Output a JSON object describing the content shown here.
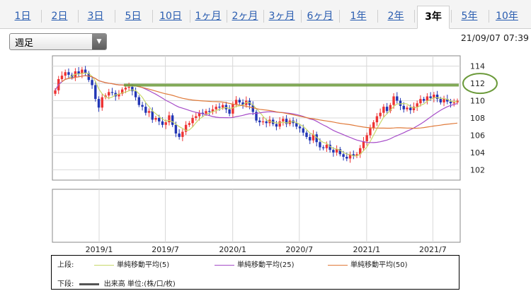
{
  "tabs": [
    {
      "label": "1日"
    },
    {
      "label": "2日"
    },
    {
      "label": "3日"
    },
    {
      "label": "5日"
    },
    {
      "label": "10日"
    },
    {
      "label": "1ヶ月"
    },
    {
      "label": "2ヶ月"
    },
    {
      "label": "3ヶ月"
    },
    {
      "label": "6ヶ月"
    },
    {
      "label": "1年"
    },
    {
      "label": "2年"
    },
    {
      "label": "3年"
    },
    {
      "label": "5年"
    },
    {
      "label": "10年"
    }
  ],
  "active_tab": "3年",
  "period_select": {
    "value": "週足"
  },
  "timestamp": "21/09/07 07:39",
  "legend": {
    "upper_label": "上段:",
    "lower_label": "下段:",
    "items": [
      {
        "label": "単純移動平均(5)",
        "color": "#c8d86a"
      },
      {
        "label": "単純移動平均(25)",
        "color": "#a64cc8"
      },
      {
        "label": "単純移動平均(50)",
        "color": "#e07a3a"
      }
    ],
    "volume_label": "出来高 単位:(株/口/枚)",
    "volume_color": "#555555"
  },
  "annotation_color": "#6b9a3a",
  "chart_data": {
    "type": "candlestick",
    "x_ticks": [
      "2019/1",
      "2019/7",
      "2020/1",
      "2020/7",
      "2021/1",
      "2021/7"
    ],
    "y_ticks": [
      102,
      104,
      106,
      108,
      110,
      112,
      114
    ],
    "ylim": [
      100.8,
      115.2
    ],
    "date_range": [
      "2018-09-03",
      "2021-09-06"
    ],
    "resistance_level": 111.8,
    "highlighted_tick": 112,
    "closes": [
      111.2,
      112.5,
      112.9,
      113.3,
      113.0,
      112.7,
      113.4,
      113.1,
      113.6,
      113.2,
      112.4,
      111.8,
      110.2,
      109.2,
      110.4,
      110.6,
      111.0,
      110.9,
      110.5,
      110.8,
      111.3,
      111.5,
      111.6,
      111.1,
      110.4,
      109.5,
      109.3,
      108.6,
      108.8,
      107.8,
      108.0,
      107.6,
      107.2,
      107.5,
      108.3,
      107.2,
      106.2,
      105.8,
      106.4,
      107.2,
      107.4,
      108.0,
      108.2,
      108.6,
      108.5,
      108.8,
      108.7,
      109.0,
      109.3,
      109.2,
      109.5,
      109.0,
      108.5,
      109.6,
      110.1,
      109.8,
      109.5,
      110.0,
      109.5,
      108.7,
      107.7,
      107.5,
      107.6,
      107.4,
      107.8,
      107.3,
      107.0,
      107.6,
      107.9,
      107.3,
      107.7,
      107.4,
      107.0,
      106.8,
      106.3,
      105.8,
      105.4,
      106.1,
      105.2,
      104.6,
      104.5,
      104.9,
      104.3,
      104.0,
      104.4,
      103.8,
      103.5,
      103.3,
      103.8,
      103.6,
      103.8,
      104.5,
      105.3,
      106.0,
      106.8,
      107.5,
      108.2,
      108.6,
      109.3,
      108.8,
      109.5,
      110.5,
      110.0,
      109.4,
      109.0,
      109.2,
      108.9,
      109.3,
      109.7,
      110.2,
      110.0,
      110.5,
      110.3,
      110.7,
      110.2,
      109.8,
      110.2,
      109.9,
      109.7,
      109.8,
      110.0
    ]
  }
}
